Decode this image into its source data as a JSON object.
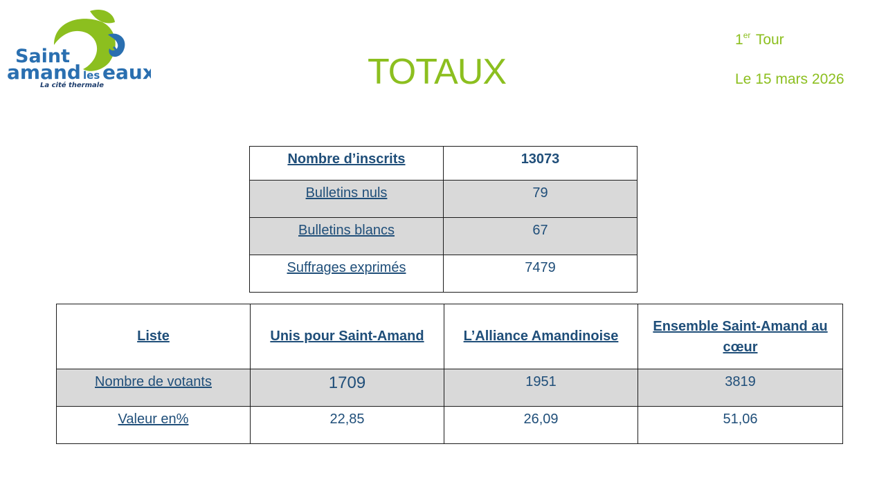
{
  "brand": {
    "logo_line1": "Saint",
    "logo_line2a": "amand",
    "logo_line2b": "les",
    "logo_line2c": "eaux",
    "tagline": "La cité thermale",
    "colors": {
      "green": "#8cbf1f",
      "blue": "#2a6fb0",
      "title_green": "#8cbf1f"
    }
  },
  "header": {
    "title": "TOTAUX",
    "round_num": "1",
    "round_sup": "er",
    "round_word": "Tour",
    "date": "Le 15 mars 2026"
  },
  "summary": {
    "rows": [
      {
        "label": "Nombre d’inscrits",
        "value": "13073"
      },
      {
        "label": "Bulletins nuls",
        "value": "79"
      },
      {
        "label": "Bulletins blancs",
        "value": "67"
      },
      {
        "label": "Suffrages exprimés",
        "value": "7479"
      }
    ]
  },
  "results": {
    "headers": [
      "Liste",
      "Unis pour Saint-Amand",
      "L’Alliance Amandinoise",
      "Ensemble Saint-Amand au cœur"
    ],
    "rows": [
      {
        "label": "Nombre de votants",
        "values": [
          "1709",
          "1951",
          "3819"
        ]
      },
      {
        "label": "Valeur en%",
        "values": [
          "22,85",
          "26,09",
          "51,06"
        ]
      }
    ]
  }
}
